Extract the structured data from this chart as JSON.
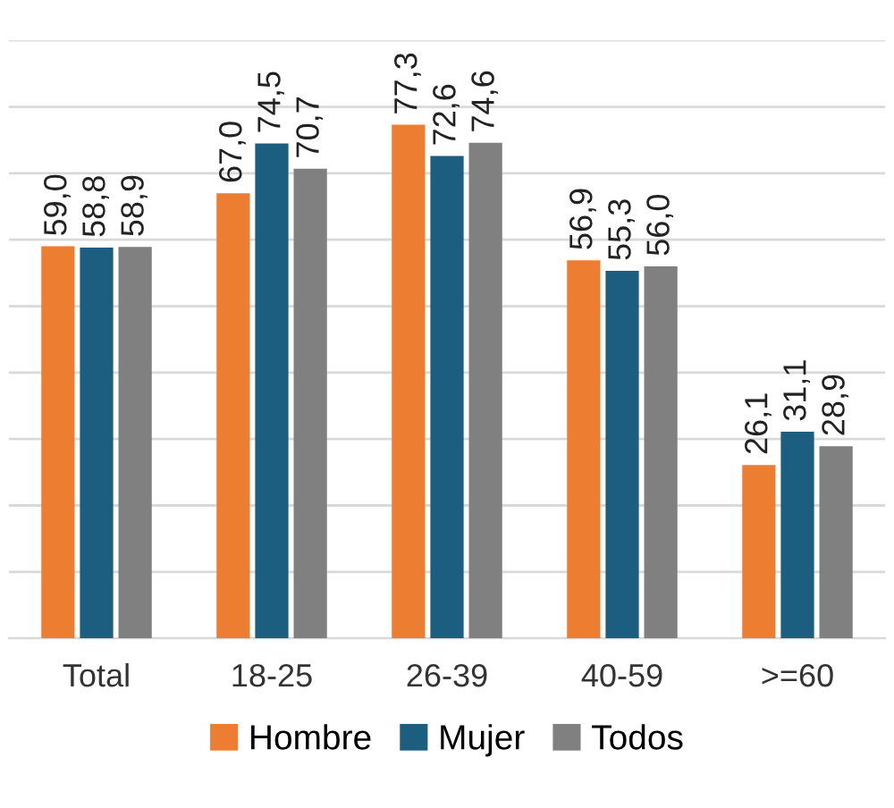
{
  "chart_data": {
    "type": "bar",
    "categories": [
      "Total",
      "18-25",
      "26-39",
      "40-59",
      ">=60"
    ],
    "series": [
      {
        "name": "Hombre",
        "color": "#ed7d31",
        "values": [
          59.0,
          67.0,
          77.3,
          56.9,
          26.1
        ],
        "value_labels": [
          "59,0",
          "67,0",
          "77,3",
          "56,9",
          "26,1"
        ]
      },
      {
        "name": "Mujer",
        "color": "#1b5e80",
        "values": [
          58.8,
          74.5,
          72.6,
          55.3,
          31.1
        ],
        "value_labels": [
          "58,8",
          "74,5",
          "72,6",
          "55,3",
          "31,1"
        ]
      },
      {
        "name": "Todos",
        "color": "#808080",
        "values": [
          58.9,
          70.7,
          74.6,
          56.0,
          28.9
        ],
        "value_labels": [
          "58,9",
          "70,7",
          "74,6",
          "56,0",
          "28,9"
        ]
      }
    ],
    "yticks": [
      {
        "value": 0,
        "label": null
      },
      {
        "value": 10,
        "label": null
      },
      {
        "value": 20,
        "label": null
      },
      {
        "value": 30,
        "label": null
      },
      {
        "value": 40,
        "label": null
      },
      {
        "value": 50,
        "label": null
      },
      {
        "value": 60,
        "label": null
      },
      {
        "value": 70,
        "label": null
      },
      {
        "value": 80,
        "label": null
      },
      {
        "value": 90,
        "label": null
      }
    ],
    "tick_labels": "x",
    "grid": "y",
    "legend": "bottom"
  }
}
